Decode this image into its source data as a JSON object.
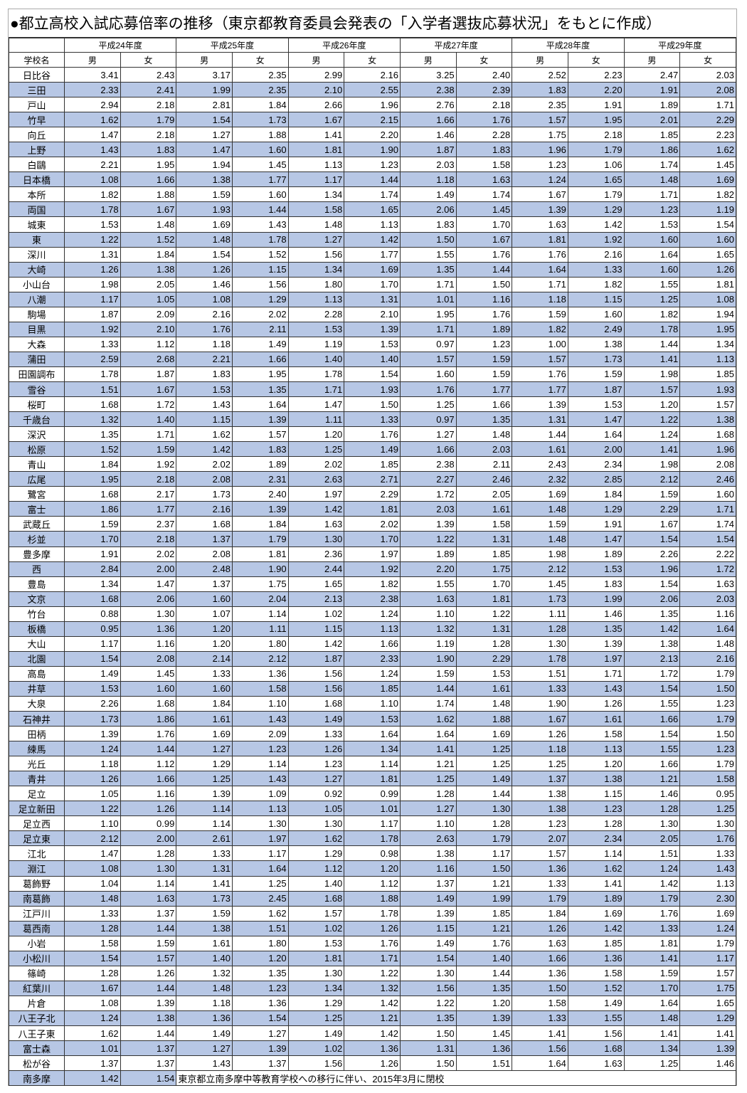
{
  "title": "●都立高校入試応募倍率の推移（東京都教育委員会発表の「入学者選抜応募状況」をもとに作成）",
  "header": {
    "school_label": "学校名",
    "years": [
      "平成24年度",
      "平成25年度",
      "平成26年度",
      "平成27年度",
      "平成28年度",
      "平成29年度"
    ],
    "male": "男",
    "female": "女"
  },
  "colors": {
    "stripe": "#b7c7e5"
  },
  "rows": [
    {
      "name": "日比谷",
      "v": [
        "3.41",
        "2.43",
        "3.17",
        "2.35",
        "2.99",
        "2.16",
        "3.25",
        "2.40",
        "2.52",
        "2.23",
        "2.47",
        "2.03"
      ]
    },
    {
      "name": "三田",
      "v": [
        "2.33",
        "2.41",
        "1.99",
        "2.35",
        "2.10",
        "2.55",
        "2.38",
        "2.39",
        "1.83",
        "2.20",
        "1.91",
        "2.08"
      ]
    },
    {
      "name": "戸山",
      "v": [
        "2.94",
        "2.18",
        "2.81",
        "1.84",
        "2.66",
        "1.96",
        "2.76",
        "2.18",
        "2.35",
        "1.91",
        "1.89",
        "1.71"
      ]
    },
    {
      "name": "竹早",
      "v": [
        "1.62",
        "1.79",
        "1.54",
        "1.73",
        "1.67",
        "2.15",
        "1.66",
        "1.76",
        "1.57",
        "1.95",
        "2.01",
        "2.29"
      ]
    },
    {
      "name": "向丘",
      "v": [
        "1.47",
        "2.18",
        "1.27",
        "1.88",
        "1.41",
        "2.20",
        "1.46",
        "2.28",
        "1.75",
        "2.18",
        "1.85",
        "2.23"
      ]
    },
    {
      "name": "上野",
      "v": [
        "1.43",
        "1.83",
        "1.47",
        "1.60",
        "1.81",
        "1.90",
        "1.87",
        "1.83",
        "1.96",
        "1.79",
        "1.86",
        "1.62"
      ]
    },
    {
      "name": "白鷗",
      "v": [
        "2.21",
        "1.95",
        "1.94",
        "1.45",
        "1.13",
        "1.23",
        "2.03",
        "1.58",
        "1.23",
        "1.06",
        "1.74",
        "1.45"
      ]
    },
    {
      "name": "日本橋",
      "v": [
        "1.08",
        "1.66",
        "1.38",
        "1.77",
        "1.17",
        "1.44",
        "1.18",
        "1.63",
        "1.24",
        "1.65",
        "1.48",
        "1.69"
      ]
    },
    {
      "name": "本所",
      "v": [
        "1.82",
        "1.88",
        "1.59",
        "1.60",
        "1.34",
        "1.74",
        "1.49",
        "1.74",
        "1.67",
        "1.79",
        "1.71",
        "1.82"
      ]
    },
    {
      "name": "両国",
      "v": [
        "1.78",
        "1.67",
        "1.93",
        "1.44",
        "1.58",
        "1.65",
        "2.06",
        "1.45",
        "1.39",
        "1.29",
        "1.23",
        "1.19"
      ]
    },
    {
      "name": "城東",
      "v": [
        "1.53",
        "1.48",
        "1.69",
        "1.43",
        "1.48",
        "1.13",
        "1.83",
        "1.70",
        "1.63",
        "1.42",
        "1.53",
        "1.54"
      ]
    },
    {
      "name": "東",
      "v": [
        "1.22",
        "1.52",
        "1.48",
        "1.78",
        "1.27",
        "1.42",
        "1.50",
        "1.67",
        "1.81",
        "1.92",
        "1.60",
        "1.60"
      ]
    },
    {
      "name": "深川",
      "v": [
        "1.31",
        "1.84",
        "1.54",
        "1.52",
        "1.56",
        "1.77",
        "1.55",
        "1.76",
        "1.76",
        "2.16",
        "1.64",
        "1.65"
      ]
    },
    {
      "name": "大崎",
      "v": [
        "1.26",
        "1.38",
        "1.26",
        "1.15",
        "1.34",
        "1.69",
        "1.35",
        "1.44",
        "1.64",
        "1.33",
        "1.60",
        "1.26"
      ]
    },
    {
      "name": "小山台",
      "v": [
        "1.98",
        "2.05",
        "1.46",
        "1.56",
        "1.80",
        "1.70",
        "1.71",
        "1.50",
        "1.71",
        "1.82",
        "1.55",
        "1.81"
      ]
    },
    {
      "name": "八潮",
      "v": [
        "1.17",
        "1.05",
        "1.08",
        "1.29",
        "1.13",
        "1.31",
        "1.01",
        "1.16",
        "1.18",
        "1.15",
        "1.25",
        "1.08"
      ]
    },
    {
      "name": "駒場",
      "v": [
        "1.87",
        "2.09",
        "2.16",
        "2.02",
        "2.28",
        "2.10",
        "1.95",
        "1.76",
        "1.59",
        "1.60",
        "1.82",
        "1.94"
      ]
    },
    {
      "name": "目黒",
      "v": [
        "1.92",
        "2.10",
        "1.76",
        "2.11",
        "1.53",
        "1.39",
        "1.71",
        "1.89",
        "1.82",
        "2.49",
        "1.78",
        "1.95"
      ]
    },
    {
      "name": "大森",
      "v": [
        "1.33",
        "1.12",
        "1.18",
        "1.49",
        "1.19",
        "1.53",
        "0.97",
        "1.23",
        "1.00",
        "1.38",
        "1.44",
        "1.34"
      ]
    },
    {
      "name": "蒲田",
      "v": [
        "2.59",
        "2.68",
        "2.21",
        "1.66",
        "1.40",
        "1.40",
        "1.57",
        "1.59",
        "1.57",
        "1.73",
        "1.41",
        "1.13"
      ]
    },
    {
      "name": "田園調布",
      "v": [
        "1.78",
        "1.87",
        "1.83",
        "1.95",
        "1.78",
        "1.54",
        "1.60",
        "1.59",
        "1.76",
        "1.59",
        "1.98",
        "1.85"
      ]
    },
    {
      "name": "雪谷",
      "v": [
        "1.51",
        "1.67",
        "1.53",
        "1.35",
        "1.71",
        "1.93",
        "1.76",
        "1.77",
        "1.77",
        "1.87",
        "1.57",
        "1.93"
      ]
    },
    {
      "name": "桜町",
      "v": [
        "1.68",
        "1.72",
        "1.43",
        "1.64",
        "1.47",
        "1.50",
        "1.25",
        "1.66",
        "1.39",
        "1.53",
        "1.20",
        "1.57"
      ]
    },
    {
      "name": "千歳台",
      "v": [
        "1.32",
        "1.40",
        "1.15",
        "1.39",
        "1.11",
        "1.33",
        "0.97",
        "1.35",
        "1.31",
        "1.47",
        "1.22",
        "1.38"
      ]
    },
    {
      "name": "深沢",
      "v": [
        "1.35",
        "1.71",
        "1.62",
        "1.57",
        "1.20",
        "1.76",
        "1.27",
        "1.48",
        "1.44",
        "1.64",
        "1.24",
        "1.68"
      ]
    },
    {
      "name": "松原",
      "v": [
        "1.52",
        "1.59",
        "1.42",
        "1.83",
        "1.25",
        "1.49",
        "1.66",
        "2.03",
        "1.61",
        "2.00",
        "1.41",
        "1.96"
      ]
    },
    {
      "name": "青山",
      "v": [
        "1.84",
        "1.92",
        "2.02",
        "1.89",
        "2.02",
        "1.85",
        "2.38",
        "2.11",
        "2.43",
        "2.34",
        "1.98",
        "2.08"
      ]
    },
    {
      "name": "広尾",
      "v": [
        "1.95",
        "2.18",
        "2.08",
        "2.31",
        "2.63",
        "2.71",
        "2.27",
        "2.46",
        "2.32",
        "2.85",
        "2.12",
        "2.46"
      ]
    },
    {
      "name": "鷺宮",
      "v": [
        "1.68",
        "2.17",
        "1.73",
        "2.40",
        "1.97",
        "2.29",
        "1.72",
        "2.05",
        "1.69",
        "1.84",
        "1.59",
        "1.60"
      ]
    },
    {
      "name": "富士",
      "v": [
        "1.86",
        "1.77",
        "2.16",
        "1.39",
        "1.42",
        "1.81",
        "2.03",
        "1.61",
        "1.48",
        "1.29",
        "2.29",
        "1.71"
      ]
    },
    {
      "name": "武蔵丘",
      "v": [
        "1.59",
        "2.37",
        "1.68",
        "1.84",
        "1.63",
        "2.02",
        "1.39",
        "1.58",
        "1.59",
        "1.91",
        "1.67",
        "1.74"
      ]
    },
    {
      "name": "杉並",
      "v": [
        "1.70",
        "2.18",
        "1.37",
        "1.79",
        "1.30",
        "1.70",
        "1.22",
        "1.31",
        "1.48",
        "1.47",
        "1.54",
        "1.54"
      ]
    },
    {
      "name": "豊多摩",
      "v": [
        "1.91",
        "2.02",
        "2.08",
        "1.81",
        "2.36",
        "1.97",
        "1.89",
        "1.85",
        "1.98",
        "1.89",
        "2.26",
        "2.22"
      ]
    },
    {
      "name": "西",
      "v": [
        "2.84",
        "2.00",
        "2.48",
        "1.90",
        "2.44",
        "1.92",
        "2.20",
        "1.75",
        "2.12",
        "1.53",
        "1.96",
        "1.72"
      ]
    },
    {
      "name": "豊島",
      "v": [
        "1.34",
        "1.47",
        "1.37",
        "1.75",
        "1.65",
        "1.82",
        "1.55",
        "1.70",
        "1.45",
        "1.83",
        "1.54",
        "1.63"
      ]
    },
    {
      "name": "文京",
      "v": [
        "1.68",
        "2.06",
        "1.60",
        "2.04",
        "2.13",
        "2.38",
        "1.63",
        "1.81",
        "1.73",
        "1.99",
        "2.06",
        "2.03"
      ]
    },
    {
      "name": "竹台",
      "v": [
        "0.88",
        "1.30",
        "1.07",
        "1.14",
        "1.02",
        "1.24",
        "1.10",
        "1.22",
        "1.11",
        "1.46",
        "1.35",
        "1.16"
      ]
    },
    {
      "name": "板橋",
      "v": [
        "0.95",
        "1.36",
        "1.20",
        "1.11",
        "1.15",
        "1.13",
        "1.32",
        "1.31",
        "1.28",
        "1.35",
        "1.42",
        "1.64"
      ]
    },
    {
      "name": "大山",
      "v": [
        "1.17",
        "1.16",
        "1.20",
        "1.80",
        "1.42",
        "1.66",
        "1.19",
        "1.28",
        "1.30",
        "1.39",
        "1.38",
        "1.48"
      ]
    },
    {
      "name": "北園",
      "v": [
        "1.54",
        "2.08",
        "2.14",
        "2.12",
        "1.87",
        "2.33",
        "1.90",
        "2.29",
        "1.78",
        "1.97",
        "2.13",
        "2.16"
      ]
    },
    {
      "name": "高島",
      "v": [
        "1.49",
        "1.45",
        "1.33",
        "1.36",
        "1.56",
        "1.24",
        "1.59",
        "1.53",
        "1.51",
        "1.71",
        "1.72",
        "1.79"
      ]
    },
    {
      "name": "井草",
      "v": [
        "1.53",
        "1.60",
        "1.60",
        "1.58",
        "1.56",
        "1.85",
        "1.44",
        "1.61",
        "1.33",
        "1.43",
        "1.54",
        "1.50"
      ]
    },
    {
      "name": "大泉",
      "v": [
        "2.26",
        "1.68",
        "1.84",
        "1.10",
        "1.68",
        "1.10",
        "1.74",
        "1.48",
        "1.90",
        "1.26",
        "1.55",
        "1.23"
      ]
    },
    {
      "name": "石神井",
      "v": [
        "1.73",
        "1.86",
        "1.61",
        "1.43",
        "1.49",
        "1.53",
        "1.62",
        "1.88",
        "1.67",
        "1.61",
        "1.66",
        "1.79"
      ]
    },
    {
      "name": "田柄",
      "v": [
        "1.39",
        "1.76",
        "1.69",
        "2.09",
        "1.33",
        "1.64",
        "1.64",
        "1.69",
        "1.26",
        "1.58",
        "1.54",
        "1.50"
      ]
    },
    {
      "name": "練馬",
      "v": [
        "1.24",
        "1.44",
        "1.27",
        "1.23",
        "1.26",
        "1.34",
        "1.41",
        "1.25",
        "1.18",
        "1.13",
        "1.55",
        "1.23"
      ]
    },
    {
      "name": "光丘",
      "v": [
        "1.18",
        "1.12",
        "1.29",
        "1.14",
        "1.23",
        "1.14",
        "1.21",
        "1.25",
        "1.25",
        "1.20",
        "1.66",
        "1.79"
      ]
    },
    {
      "name": "青井",
      "v": [
        "1.26",
        "1.66",
        "1.25",
        "1.43",
        "1.27",
        "1.81",
        "1.25",
        "1.49",
        "1.37",
        "1.38",
        "1.21",
        "1.58"
      ]
    },
    {
      "name": "足立",
      "v": [
        "1.05",
        "1.16",
        "1.39",
        "1.09",
        "0.92",
        "0.99",
        "1.28",
        "1.44",
        "1.38",
        "1.15",
        "1.46",
        "0.95"
      ]
    },
    {
      "name": "足立新田",
      "v": [
        "1.22",
        "1.26",
        "1.14",
        "1.13",
        "1.05",
        "1.01",
        "1.27",
        "1.30",
        "1.38",
        "1.23",
        "1.28",
        "1.25"
      ]
    },
    {
      "name": "足立西",
      "v": [
        "1.10",
        "0.99",
        "1.14",
        "1.30",
        "1.30",
        "1.17",
        "1.10",
        "1.28",
        "1.23",
        "1.28",
        "1.30",
        "1.30"
      ]
    },
    {
      "name": "足立東",
      "v": [
        "2.12",
        "2.00",
        "2.61",
        "1.97",
        "1.62",
        "1.78",
        "2.63",
        "1.79",
        "2.07",
        "2.34",
        "2.05",
        "1.76"
      ]
    },
    {
      "name": "江北",
      "v": [
        "1.47",
        "1.28",
        "1.33",
        "1.17",
        "1.29",
        "0.98",
        "1.38",
        "1.17",
        "1.57",
        "1.14",
        "1.51",
        "1.33"
      ]
    },
    {
      "name": "淵江",
      "v": [
        "1.08",
        "1.30",
        "1.31",
        "1.64",
        "1.12",
        "1.20",
        "1.16",
        "1.50",
        "1.36",
        "1.62",
        "1.24",
        "1.43"
      ]
    },
    {
      "name": "葛飾野",
      "v": [
        "1.04",
        "1.14",
        "1.41",
        "1.25",
        "1.40",
        "1.12",
        "1.37",
        "1.21",
        "1.33",
        "1.41",
        "1.42",
        "1.13"
      ]
    },
    {
      "name": "南葛飾",
      "v": [
        "1.48",
        "1.63",
        "1.73",
        "2.45",
        "1.68",
        "1.88",
        "1.49",
        "1.99",
        "1.79",
        "1.89",
        "1.79",
        "2.30"
      ]
    },
    {
      "name": "江戸川",
      "v": [
        "1.33",
        "1.37",
        "1.59",
        "1.62",
        "1.57",
        "1.78",
        "1.39",
        "1.85",
        "1.84",
        "1.69",
        "1.76",
        "1.69"
      ]
    },
    {
      "name": "葛西南",
      "v": [
        "1.28",
        "1.44",
        "1.38",
        "1.51",
        "1.02",
        "1.26",
        "1.15",
        "1.21",
        "1.26",
        "1.42",
        "1.33",
        "1.24"
      ]
    },
    {
      "name": "小岩",
      "v": [
        "1.58",
        "1.59",
        "1.61",
        "1.80",
        "1.53",
        "1.76",
        "1.49",
        "1.76",
        "1.63",
        "1.85",
        "1.81",
        "1.79"
      ]
    },
    {
      "name": "小松川",
      "v": [
        "1.54",
        "1.57",
        "1.40",
        "1.20",
        "1.81",
        "1.71",
        "1.54",
        "1.40",
        "1.66",
        "1.36",
        "1.41",
        "1.17"
      ]
    },
    {
      "name": "篠崎",
      "v": [
        "1.28",
        "1.26",
        "1.32",
        "1.35",
        "1.30",
        "1.22",
        "1.30",
        "1.44",
        "1.36",
        "1.58",
        "1.59",
        "1.57"
      ]
    },
    {
      "name": "紅葉川",
      "v": [
        "1.67",
        "1.44",
        "1.48",
        "1.23",
        "1.34",
        "1.32",
        "1.56",
        "1.35",
        "1.50",
        "1.52",
        "1.70",
        "1.75"
      ]
    },
    {
      "name": "片倉",
      "v": [
        "1.08",
        "1.39",
        "1.18",
        "1.36",
        "1.29",
        "1.42",
        "1.22",
        "1.20",
        "1.58",
        "1.49",
        "1.64",
        "1.65"
      ]
    },
    {
      "name": "八王子北",
      "v": [
        "1.24",
        "1.38",
        "1.36",
        "1.54",
        "1.25",
        "1.21",
        "1.35",
        "1.39",
        "1.33",
        "1.55",
        "1.48",
        "1.29"
      ]
    },
    {
      "name": "八王子東",
      "v": [
        "1.62",
        "1.44",
        "1.49",
        "1.27",
        "1.49",
        "1.42",
        "1.50",
        "1.45",
        "1.41",
        "1.56",
        "1.41",
        "1.41"
      ]
    },
    {
      "name": "富士森",
      "v": [
        "1.01",
        "1.37",
        "1.27",
        "1.39",
        "1.02",
        "1.36",
        "1.31",
        "1.36",
        "1.56",
        "1.68",
        "1.34",
        "1.39"
      ]
    },
    {
      "name": "松が谷",
      "v": [
        "1.37",
        "1.37",
        "1.43",
        "1.37",
        "1.56",
        "1.26",
        "1.50",
        "1.51",
        "1.64",
        "1.63",
        "1.25",
        "1.46"
      ]
    },
    {
      "name": "南多摩",
      "v": [
        "1.42",
        "1.54"
      ],
      "note": "東京都立南多摩中等教育学校への移行に伴い、2015年3月に閉校"
    }
  ]
}
